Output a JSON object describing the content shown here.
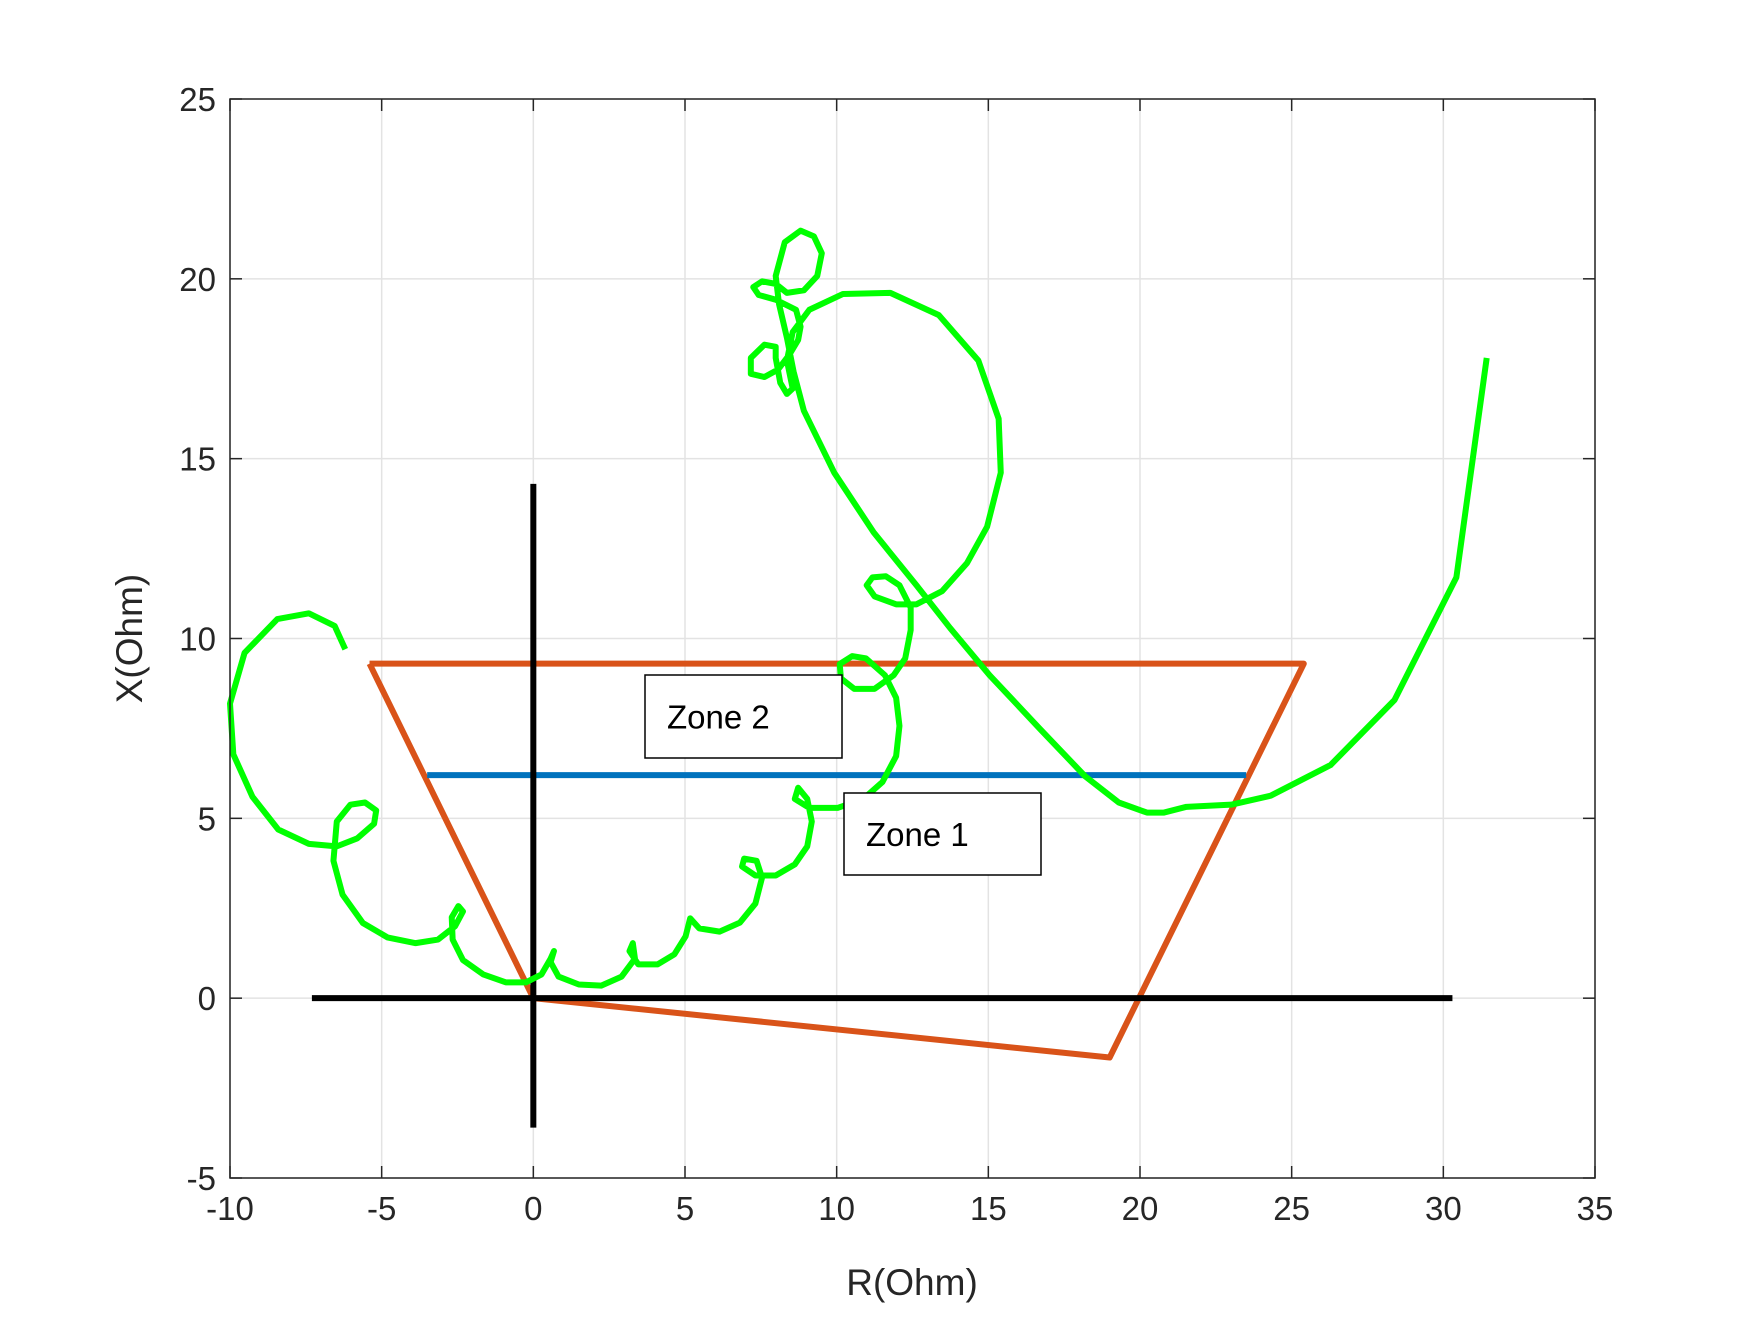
{
  "chart_data": {
    "type": "line",
    "xlabel": "R(Ohm)",
    "ylabel": "X(Ohm)",
    "xlim": [
      -10,
      35
    ],
    "ylim": [
      -5,
      25
    ],
    "xticks": [
      -10,
      -5,
      0,
      5,
      10,
      15,
      20,
      25,
      30,
      35
    ],
    "yticks": [
      -5,
      0,
      5,
      10,
      15,
      20,
      25
    ],
    "grid": true,
    "annotations": [
      "Zone 2",
      "Zone 1"
    ],
    "series": [
      {
        "color": "#d95319",
        "x": [
          -5.4,
          25.4,
          19.0,
          0,
          -5.4
        ],
        "values": [
          9.3,
          9.3,
          -1.65,
          0,
          9.3
        ]
      },
      {
        "color": "#0072bd",
        "x": [
          -3.5,
          23.5
        ],
        "values": [
          6.2,
          6.2
        ]
      },
      {
        "color": "#000000",
        "x": [
          -7.3,
          30.3
        ],
        "values": [
          0,
          0
        ]
      },
      {
        "color": "#000000",
        "x": [
          0,
          0
        ],
        "values": [
          14.3,
          -3.6
        ]
      },
      {
        "color": "#00ff00",
        "x": [
          -6.2,
          -6.55,
          -7.4,
          -8.44,
          -9.52,
          -10.0,
          -9.89,
          -9.26,
          -8.41,
          -7.4,
          -6.48,
          -5.81,
          -5.25,
          -5.18,
          -5.55,
          -6.03,
          -6.48,
          -6.59,
          -6.29,
          -5.62,
          -4.81,
          -3.88,
          -3.14,
          -2.58,
          -2.32,
          -2.47,
          -2.69,
          -2.66,
          -2.32,
          -1.65,
          -0.91,
          -0.24,
          0.27,
          0.57,
          0.68,
          0.57,
          0.83,
          1.5,
          2.24,
          2.91,
          3.35,
          3.28,
          3.17,
          3.46,
          4.1,
          4.65,
          5.02,
          5.17,
          5.47,
          6.14,
          6.81,
          7.32,
          7.54,
          7.36,
          6.95,
          6.88,
          7.32,
          7.99,
          8.62,
          9.03,
          9.18,
          9.03,
          8.73,
          8.62,
          9.1,
          10.03,
          10.88,
          11.51,
          11.96,
          12.07,
          11.96,
          11.59,
          10.96,
          10.51,
          10.1,
          10.14,
          10.58,
          11.25,
          11.88,
          12.26,
          12.44,
          12.44,
          12.07,
          11.62,
          11.18,
          10.99,
          11.25,
          11.96,
          12.63,
          13.48,
          14.3,
          14.96,
          15.41,
          15.34,
          14.67,
          13.37,
          11.77,
          10.21,
          9.1,
          8.55,
          8.36,
          8.55,
          8.36,
          8.14,
          7.99,
          7.99,
          7.62,
          7.17,
          7.17,
          7.62,
          8.07,
          8.44,
          8.73,
          8.81,
          8.66,
          7.99,
          7.43,
          7.25,
          7.54,
          7.99,
          8.36,
          8.92,
          9.36,
          9.51,
          9.25,
          8.81,
          8.29,
          7.99,
          8.1,
          8.36,
          8.58,
          8.92,
          9.92,
          11.22,
          12.63,
          13.74,
          15.04,
          16.71,
          18.19,
          19.3,
          20.23,
          20.79,
          21.53,
          23.01,
          24.31,
          26.28,
          28.39,
          30.43,
          31.43
        ],
        "values": [
          9.7,
          10.35,
          10.7,
          10.54,
          9.6,
          8.19,
          6.78,
          5.6,
          4.69,
          4.29,
          4.22,
          4.44,
          4.85,
          5.22,
          5.44,
          5.38,
          4.91,
          3.82,
          2.88,
          2.09,
          1.69,
          1.53,
          1.63,
          2.0,
          2.41,
          2.56,
          2.25,
          1.63,
          1.06,
          0.66,
          0.44,
          0.44,
          0.66,
          1.1,
          1.31,
          1.0,
          0.6,
          0.38,
          0.35,
          0.6,
          1.1,
          1.53,
          1.31,
          0.94,
          0.94,
          1.22,
          1.72,
          2.22,
          1.94,
          1.85,
          2.1,
          2.63,
          3.35,
          3.82,
          3.88,
          3.66,
          3.41,
          3.41,
          3.72,
          4.22,
          4.91,
          5.54,
          5.85,
          5.54,
          5.29,
          5.29,
          5.54,
          6.01,
          6.73,
          7.57,
          8.35,
          8.98,
          9.45,
          9.51,
          9.29,
          8.89,
          8.6,
          8.6,
          8.98,
          9.45,
          10.23,
          10.86,
          11.48,
          11.73,
          11.7,
          11.48,
          11.17,
          10.95,
          10.95,
          11.32,
          12.1,
          13.11,
          14.61,
          16.11,
          17.73,
          18.99,
          19.61,
          19.58,
          19.14,
          18.52,
          17.73,
          16.95,
          16.8,
          17.11,
          17.8,
          18.11,
          18.17,
          17.8,
          17.36,
          17.27,
          17.48,
          17.89,
          18.3,
          18.67,
          19.14,
          19.42,
          19.55,
          19.77,
          19.93,
          19.86,
          19.61,
          19.68,
          20.08,
          20.71,
          21.18,
          21.34,
          21.02,
          20.08,
          19.3,
          18.36,
          17.42,
          16.33,
          14.61,
          12.95,
          11.48,
          10.29,
          8.98,
          7.48,
          6.17,
          5.44,
          5.16,
          5.16,
          5.32,
          5.38,
          5.63,
          6.48,
          8.29,
          11.7,
          17.8
        ]
      }
    ]
  }
}
